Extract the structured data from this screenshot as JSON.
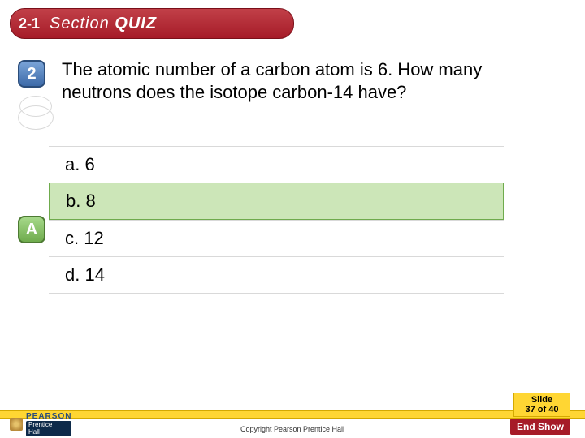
{
  "header": {
    "section_number": "2-1",
    "label_thin": "Section",
    "label_bold": "QUIZ",
    "bg_gradient_top": "#c14048",
    "bg_gradient_bottom": "#a61b28"
  },
  "question": {
    "badge_number": "2",
    "badge_bg_top": "#7aa4d8",
    "badge_bg_bottom": "#3d6aa8",
    "text": "The atomic number of a carbon atom is 6. How many neutrons does the isotope carbon-14 have?",
    "font_size": 22
  },
  "answer_badge": {
    "letter": "A",
    "bg_top": "#a6d98a",
    "bg_bottom": "#6fab4d"
  },
  "answers": [
    {
      "label": "a.",
      "text": "6",
      "correct": false
    },
    {
      "label": "b.",
      "text": "8",
      "correct": true
    },
    {
      "label": "c.",
      "text": "12",
      "correct": false
    },
    {
      "label": "d.",
      "text": "14",
      "correct": false
    }
  ],
  "answer_style": {
    "correct_bg": "#cce6b8",
    "correct_border": "#6fab4d",
    "row_border": "#d9d9d9"
  },
  "footer": {
    "slide_label": "Slide",
    "slide_count": "37 of 40",
    "slide_bar_color": "#ffd633",
    "end_show": "End Show",
    "end_show_bg": "#a61b28",
    "copyright": "Copyright Pearson Prentice Hall",
    "logo_pearson": "PEARSON",
    "logo_ph_top": "Prentice",
    "logo_ph_bottom": "Hall"
  }
}
